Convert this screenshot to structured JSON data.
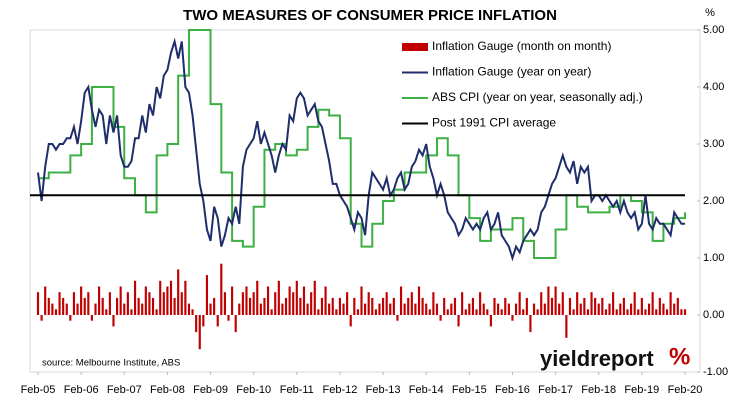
{
  "chart_data": {
    "type": "combo",
    "title": "TWO MEASURES OF CONSUMER PRICE INFLATION",
    "y_label": "%",
    "source": "source: Melbourne Institute, ABS",
    "logo": "yieldreport",
    "logo_symbol": "%",
    "xlim": [
      0,
      180
    ],
    "xticks": [
      {
        "value": 0,
        "label": "Feb-05"
      },
      {
        "value": 12,
        "label": "Feb-06"
      },
      {
        "value": 24,
        "label": "Feb-07"
      },
      {
        "value": 36,
        "label": "Feb-08"
      },
      {
        "value": 48,
        "label": "Feb-09"
      },
      {
        "value": 60,
        "label": "Feb-10"
      },
      {
        "value": 72,
        "label": "Feb-11"
      },
      {
        "value": 84,
        "label": "Feb-12"
      },
      {
        "value": 96,
        "label": "Feb-13"
      },
      {
        "value": 108,
        "label": "Feb-14"
      },
      {
        "value": 120,
        "label": "Feb-15"
      },
      {
        "value": 132,
        "label": "Feb-16"
      },
      {
        "value": 144,
        "label": "Feb-17"
      },
      {
        "value": 156,
        "label": "Feb-18"
      },
      {
        "value": 168,
        "label": "Feb-19"
      },
      {
        "value": 180,
        "label": "Feb-20"
      }
    ],
    "ylim": [
      -1,
      5
    ],
    "yticks": [
      {
        "value": -1,
        "label": "-1.00"
      },
      {
        "value": 0,
        "label": "0.00"
      },
      {
        "value": 1,
        "label": "1.00"
      },
      {
        "value": 2,
        "label": "2.00"
      },
      {
        "value": 3,
        "label": "3.00"
      },
      {
        "value": 4,
        "label": "4.00"
      },
      {
        "value": 5,
        "label": "5.00"
      }
    ],
    "series": [
      {
        "name": "Inflation Gauge (month on month)",
        "type": "bar",
        "color": "#c00000",
        "x": [
          0,
          1,
          2,
          3,
          4,
          5,
          6,
          7,
          8,
          9,
          10,
          11,
          12,
          13,
          14,
          15,
          16,
          17,
          18,
          19,
          20,
          21,
          22,
          23,
          24,
          25,
          26,
          27,
          28,
          29,
          30,
          31,
          32,
          33,
          34,
          35,
          36,
          37,
          38,
          39,
          40,
          41,
          42,
          43,
          44,
          45,
          46,
          47,
          48,
          49,
          50,
          51,
          52,
          53,
          54,
          55,
          56,
          57,
          58,
          59,
          60,
          61,
          62,
          63,
          64,
          65,
          66,
          67,
          68,
          69,
          70,
          71,
          72,
          73,
          74,
          75,
          76,
          77,
          78,
          79,
          80,
          81,
          82,
          83,
          84,
          85,
          86,
          87,
          88,
          89,
          90,
          91,
          92,
          93,
          94,
          95,
          96,
          97,
          98,
          99,
          100,
          101,
          102,
          103,
          104,
          105,
          106,
          107,
          108,
          109,
          110,
          111,
          112,
          113,
          114,
          115,
          116,
          117,
          118,
          119,
          120,
          121,
          122,
          123,
          124,
          125,
          126,
          127,
          128,
          129,
          130,
          131,
          132,
          133,
          134,
          135,
          136,
          137,
          138,
          139,
          140,
          141,
          142,
          143,
          144,
          145,
          146,
          147,
          148,
          149,
          150,
          151,
          152,
          153,
          154,
          155,
          156,
          157,
          158,
          159,
          160,
          161,
          162,
          163,
          164,
          165,
          166,
          167,
          168,
          169,
          170,
          171,
          172,
          173,
          174,
          175,
          176,
          177,
          178,
          179,
          180
        ],
        "values": [
          0.4,
          -0.1,
          0.5,
          0.3,
          0.2,
          0.1,
          0.4,
          0.3,
          0.2,
          -0.1,
          0.4,
          0.2,
          0.5,
          0.3,
          0.4,
          -0.1,
          0.2,
          0.5,
          0.3,
          0.1,
          0.4,
          -0.2,
          0.3,
          0.5,
          0.2,
          0.4,
          0.1,
          0.6,
          0.3,
          0.2,
          0.5,
          0.4,
          0.3,
          0.1,
          0.6,
          0.4,
          0.5,
          0.6,
          0.3,
          0.8,
          0.4,
          0.6,
          0.2,
          0.1,
          -0.3,
          -0.6,
          -0.2,
          0.7,
          0.2,
          0.3,
          -0.2,
          0.9,
          0.4,
          -0.1,
          0.5,
          -0.3,
          0.2,
          0.4,
          0.5,
          0.3,
          0.4,
          0.6,
          0.2,
          0.3,
          0.5,
          0.1,
          0.4,
          0.6,
          0.2,
          0.3,
          0.5,
          0.4,
          0.6,
          0.3,
          0.5,
          0.2,
          0.4,
          0.6,
          0.1,
          0.3,
          0.5,
          0.2,
          0.3,
          0.1,
          0.3,
          0.2,
          0.4,
          -0.2,
          0.3,
          0.1,
          0.5,
          0.2,
          0.4,
          0.3,
          0.1,
          0.2,
          0.3,
          0.4,
          0.2,
          0.3,
          -0.1,
          0.5,
          0.2,
          0.3,
          0.4,
          0.2,
          0.5,
          0.3,
          0.2,
          0.1,
          0.4,
          0.2,
          -0.1,
          0.3,
          0.1,
          0.2,
          0.3,
          -0.2,
          0.4,
          0.1,
          0.2,
          0.3,
          0.1,
          0.4,
          0.2,
          0.1,
          -0.2,
          0.3,
          0.2,
          0.1,
          0.3,
          0.2,
          -0.1,
          0.2,
          0.4,
          0.1,
          0.3,
          -0.3,
          0.2,
          0.1,
          0.4,
          0.2,
          0.5,
          0.3,
          0.5,
          0.2,
          0.4,
          -0.4,
          0.3,
          0.1,
          0.4,
          0.2,
          0.3,
          0.1,
          0.4,
          0.3,
          0.2,
          0.3,
          0.1,
          0.2,
          0.4,
          0.1,
          0.2,
          0.3,
          0.1,
          0.2,
          0.4,
          0.1,
          0.3,
          0.1,
          0.2,
          0.4,
          0.1,
          0.3,
          0.2,
          0.1,
          0.4,
          0.2,
          0.3,
          0.1,
          0.1
        ]
      },
      {
        "name": "Inflation Gauge (year on year)",
        "type": "line",
        "color": "#1f2d6b",
        "x": [
          0,
          1,
          2,
          3,
          4,
          5,
          6,
          7,
          8,
          9,
          10,
          11,
          12,
          13,
          14,
          15,
          16,
          17,
          18,
          19,
          20,
          21,
          22,
          23,
          24,
          25,
          26,
          27,
          28,
          29,
          30,
          31,
          32,
          33,
          34,
          35,
          36,
          37,
          38,
          39,
          40,
          41,
          42,
          43,
          44,
          45,
          46,
          47,
          48,
          49,
          50,
          51,
          52,
          53,
          54,
          55,
          56,
          57,
          58,
          59,
          60,
          61,
          62,
          63,
          64,
          65,
          66,
          67,
          68,
          69,
          70,
          71,
          72,
          73,
          74,
          75,
          76,
          77,
          78,
          79,
          80,
          81,
          82,
          83,
          84,
          85,
          86,
          87,
          88,
          89,
          90,
          91,
          92,
          93,
          94,
          95,
          96,
          97,
          98,
          99,
          100,
          101,
          102,
          103,
          104,
          105,
          106,
          107,
          108,
          109,
          110,
          111,
          112,
          113,
          114,
          115,
          116,
          117,
          118,
          119,
          120,
          121,
          122,
          123,
          124,
          125,
          126,
          127,
          128,
          129,
          130,
          131,
          132,
          133,
          134,
          135,
          136,
          137,
          138,
          139,
          140,
          141,
          142,
          143,
          144,
          145,
          146,
          147,
          148,
          149,
          150,
          151,
          152,
          153,
          154,
          155,
          156,
          157,
          158,
          159,
          160,
          161,
          162,
          163,
          164,
          165,
          166,
          167,
          168,
          169,
          170,
          171,
          172,
          173,
          174,
          175,
          176,
          177,
          178,
          179,
          180
        ],
        "values": [
          2.5,
          2.0,
          2.6,
          3.0,
          3.0,
          2.9,
          3.0,
          3.0,
          3.1,
          3.1,
          3.3,
          3.0,
          3.4,
          3.9,
          4.0,
          3.6,
          3.3,
          3.6,
          3.5,
          3.0,
          3.5,
          3.2,
          3.5,
          2.8,
          2.6,
          2.6,
          2.7,
          3.1,
          3.1,
          3.5,
          3.2,
          3.7,
          3.5,
          4.0,
          3.8,
          4.2,
          4.3,
          4.6,
          4.8,
          4.5,
          4.8,
          4.0,
          3.9,
          3.5,
          2.9,
          2.3,
          2.0,
          1.5,
          1.3,
          1.9,
          1.7,
          1.2,
          1.4,
          1.7,
          1.6,
          1.9,
          1.6,
          2.6,
          2.9,
          3.0,
          3.1,
          3.4,
          3.0,
          3.2,
          3.0,
          2.8,
          2.5,
          2.8,
          3.0,
          2.9,
          3.5,
          3.4,
          3.8,
          3.9,
          3.8,
          3.5,
          3.6,
          3.7,
          3.4,
          3.3,
          3.0,
          2.7,
          2.3,
          2.3,
          2.1,
          2.0,
          1.9,
          1.7,
          1.5,
          1.8,
          1.7,
          1.4,
          2.1,
          2.5,
          2.4,
          2.3,
          2.2,
          2.4,
          2.1,
          2.2,
          2.4,
          2.5,
          2.2,
          2.3,
          2.6,
          2.7,
          2.9,
          2.8,
          3.0,
          2.6,
          2.4,
          2.1,
          2.3,
          2.1,
          1.8,
          1.7,
          1.6,
          1.4,
          1.5,
          1.7,
          1.6,
          1.5,
          1.6,
          1.5,
          1.7,
          1.8,
          1.5,
          1.6,
          1.8,
          1.4,
          1.3,
          1.2,
          1.0,
          1.2,
          1.1,
          1.3,
          1.4,
          1.5,
          1.4,
          1.5,
          1.8,
          1.9,
          2.1,
          2.3,
          2.4,
          2.6,
          2.8,
          2.6,
          2.5,
          2.7,
          2.3,
          2.6,
          2.5,
          2.6,
          2.0,
          2.1,
          2.1,
          2.0,
          2.1,
          2.0,
          1.9,
          2.0,
          1.8,
          2.0,
          1.8,
          1.7,
          1.8,
          1.5,
          1.6,
          2.1,
          1.6,
          1.5,
          1.7,
          1.6,
          1.6,
          1.5,
          1.4,
          1.8,
          1.7,
          1.6,
          1.6
        ]
      },
      {
        "name": "ABS CPI (year on year, seasonally adj.)",
        "type": "step",
        "color": "#3cb043",
        "x": [
          0,
          3,
          6,
          9,
          12,
          15,
          18,
          21,
          24,
          27,
          30,
          33,
          36,
          39,
          42,
          45,
          48,
          51,
          54,
          57,
          60,
          63,
          66,
          69,
          72,
          75,
          78,
          81,
          84,
          87,
          90,
          93,
          96,
          99,
          102,
          105,
          108,
          111,
          114,
          117,
          120,
          123,
          126,
          129,
          132,
          135,
          138,
          141,
          144,
          147,
          150,
          153,
          156,
          159,
          162,
          165,
          168,
          171,
          174,
          177,
          180
        ],
        "values": [
          2.4,
          2.5,
          2.5,
          2.8,
          3.0,
          4.0,
          4.0,
          3.3,
          2.4,
          2.1,
          1.8,
          2.8,
          3.0,
          4.2,
          5.0,
          5.0,
          3.7,
          2.5,
          1.3,
          1.2,
          1.9,
          2.9,
          3.0,
          2.8,
          2.9,
          3.3,
          3.6,
          3.5,
          3.1,
          1.6,
          1.2,
          1.6,
          2.0,
          2.2,
          2.5,
          2.5,
          2.8,
          3.1,
          2.8,
          2.1,
          1.7,
          1.3,
          1.5,
          1.5,
          1.7,
          1.3,
          1.0,
          1.0,
          1.5,
          2.1,
          1.9,
          1.8,
          1.8,
          1.9,
          2.1,
          2.0,
          1.8,
          1.3,
          1.6,
          1.7,
          1.8
        ]
      },
      {
        "name": "Post 1991 CPI average",
        "type": "hline",
        "color": "#000000",
        "value": 2.1
      }
    ]
  }
}
